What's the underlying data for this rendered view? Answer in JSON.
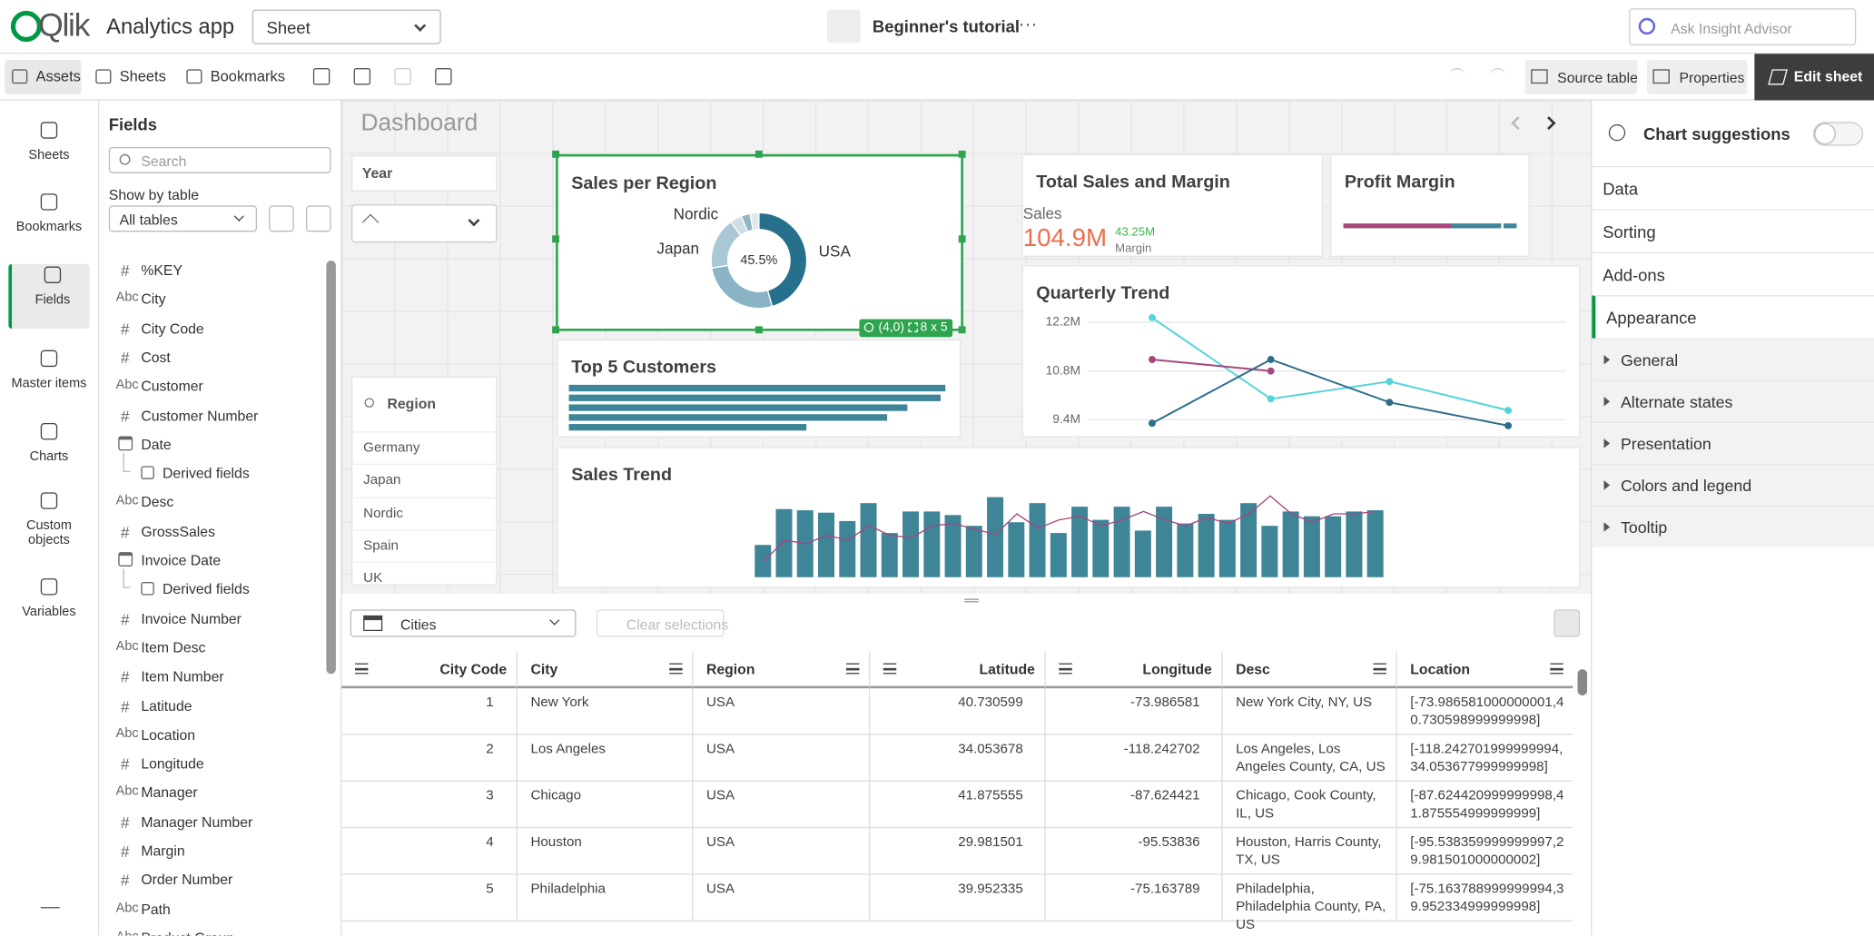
{
  "header": {
    "logo": "Qlik",
    "app_name": "Analytics app",
    "sheet_dropdown": "Sheet",
    "tutorial": "Beginner's tutorial",
    "more": "···",
    "search_placeholder": "Ask Insight Advisor"
  },
  "toolbar": {
    "assets": "Assets",
    "sheets": "Sheets",
    "bookmarks": "Bookmarks",
    "source_table": "Source table",
    "properties": "Properties",
    "edit_sheet": "Edit sheet"
  },
  "left_nav": [
    "Sheets",
    "Bookmarks",
    "Fields",
    "Master items",
    "Charts",
    "Custom objects",
    "Variables"
  ],
  "fields_panel": {
    "title": "Fields",
    "search_placeholder": "Search",
    "show_by_table": "Show by table",
    "table_select": "All tables",
    "fields": [
      {
        "icon": "#",
        "name": "%KEY"
      },
      {
        "icon": "Abc",
        "name": "City"
      },
      {
        "icon": "#",
        "name": "City Code"
      },
      {
        "icon": "#",
        "name": "Cost"
      },
      {
        "icon": "Abc",
        "name": "Customer"
      },
      {
        "icon": "#",
        "name": "Customer Number"
      },
      {
        "name": "Date"
      },
      {
        "name": "Derived fields",
        "sub": true
      },
      {
        "icon": "Abc",
        "name": "Desc"
      },
      {
        "icon": "#",
        "name": "GrossSales"
      },
      {
        "name": "Invoice Date"
      },
      {
        "name": "Derived fields",
        "sub": true
      },
      {
        "icon": "#",
        "name": "Invoice Number"
      },
      {
        "icon": "Abc",
        "name": "Item Desc"
      },
      {
        "icon": "#",
        "name": "Item Number"
      },
      {
        "icon": "#",
        "name": "Latitude"
      },
      {
        "icon": "Abc",
        "name": "Location"
      },
      {
        "icon": "#",
        "name": "Longitude"
      },
      {
        "icon": "Abc",
        "name": "Manager"
      },
      {
        "icon": "#",
        "name": "Manager Number"
      },
      {
        "icon": "#",
        "name": "Margin"
      },
      {
        "icon": "#",
        "name": "Order Number"
      },
      {
        "icon": "Abc",
        "name": "Path"
      },
      {
        "icon": "Abc",
        "name": "Product Group"
      }
    ]
  },
  "sheet": {
    "title": "Dashboard",
    "year_filter": "Year",
    "region_filter": {
      "title": "Region",
      "values": [
        "Germany",
        "Japan",
        "Nordic",
        "Spain",
        "UK"
      ]
    },
    "selection_badge": {
      "position": "(4,0)",
      "size": "8 x 5"
    },
    "sales_per_region": {
      "type": "pie",
      "title": "Sales per Region",
      "categories": [
        "USA",
        "Japan",
        "Nordic",
        null,
        null,
        null
      ],
      "values": [
        45.5,
        27,
        17.5,
        4,
        3,
        3
      ],
      "value_labels": [
        "45.5%",
        null,
        null,
        null,
        null,
        null
      ],
      "colors": [
        "#26708c",
        "#8ab3c6",
        "#aac7d5",
        "#cfdde4",
        "#94b5c5",
        "#dde7ec"
      ]
    },
    "top_customers": {
      "type": "bar",
      "title": "Top 5 Customers",
      "values": [
        317,
        313,
        285,
        268,
        200
      ],
      "xlim": [
        0,
        320
      ],
      "color": "#3e8598"
    },
    "kpi": {
      "title": "Total Sales and Margin",
      "sales_label": "Sales",
      "sales_value": "104.9M",
      "margin_value": "43.25M",
      "margin_label": "Margin"
    },
    "profit_margin": {
      "title": "Profit Margin"
    },
    "quarterly_trend": {
      "type": "line",
      "title": "Quarterly Trend",
      "categories": [
        null,
        null,
        null,
        null
      ],
      "ylim": [
        9100000,
        12600000
      ],
      "yticks": [
        {
          "value": 9400000,
          "label": "9.4M"
        },
        {
          "value": 10800000,
          "label": "10.8M"
        },
        {
          "value": 12200000,
          "label": "12.2M"
        }
      ],
      "series": [
        {
          "color": "#55d3db",
          "values": [
            12330000,
            10000000,
            10500000,
            9670000
          ]
        },
        {
          "color": "#a5467d",
          "values": [
            11130000,
            10800000,
            null,
            null
          ]
        },
        {
          "color": "#2d6d87",
          "values": [
            9300000,
            11130000,
            9900000,
            9230000
          ]
        }
      ]
    },
    "sales_trend": {
      "type": "bar",
      "title": "Sales Trend",
      "ylim": [
        0,
        70
      ],
      "bar_color": "#3e8598",
      "line_color": "#a5467d",
      "values": [
        27,
        57,
        56,
        54,
        47,
        62,
        37,
        55,
        55,
        52,
        43,
        67,
        46,
        62,
        37,
        59,
        48,
        59,
        39,
        59,
        45,
        53,
        48,
        62,
        43,
        55,
        51,
        51,
        55,
        56
      ],
      "line_values": [
        13,
        31,
        28,
        35,
        31,
        43,
        35,
        33,
        43,
        45,
        40,
        36,
        53,
        41,
        48,
        51,
        43,
        48,
        55,
        48,
        43,
        50,
        45,
        53,
        68,
        53,
        46,
        53,
        53,
        55
      ]
    }
  },
  "table_toolbar": {
    "table_select": "Cities",
    "clear_selections": "Clear selections"
  },
  "table": {
    "columns": [
      "City Code",
      "City",
      "Region",
      "Latitude",
      "Longitude",
      "Desc",
      "Location"
    ],
    "rows": [
      [
        1,
        "New York",
        "USA",
        40.730599,
        -73.986581,
        "New York City, NY, US",
        "[-73.986581000000001,40.730598999999998]"
      ],
      [
        2,
        "Los Angeles",
        "USA",
        34.053678,
        -118.242702,
        "Los Angeles, Los Angeles County, CA, US",
        "[-118.242701999999994,34.053677999999998]"
      ],
      [
        3,
        "Chicago",
        "USA",
        41.875555,
        -87.624421,
        "Chicago, Cook County, IL, US",
        "[-87.624420999999998,41.875554999999999]"
      ],
      [
        4,
        "Houston",
        "USA",
        29.981501,
        -95.53836,
        "Houston, Harris County, TX, US",
        "[-95.538359999999997,29.981501000000002]"
      ],
      [
        5,
        "Philadelphia",
        "USA",
        39.952335,
        -75.163789,
        "Philadelphia, Philadelphia County, PA, US",
        "[-75.163788999999994,39.952334999999998]"
      ]
    ]
  },
  "right_panel": {
    "title": "Chart suggestions",
    "sections": [
      "Data",
      "Sorting",
      "Add-ons",
      "Appearance"
    ],
    "subsections": [
      "General",
      "Alternate states",
      "Presentation",
      "Colors and legend",
      "Tooltip"
    ]
  }
}
